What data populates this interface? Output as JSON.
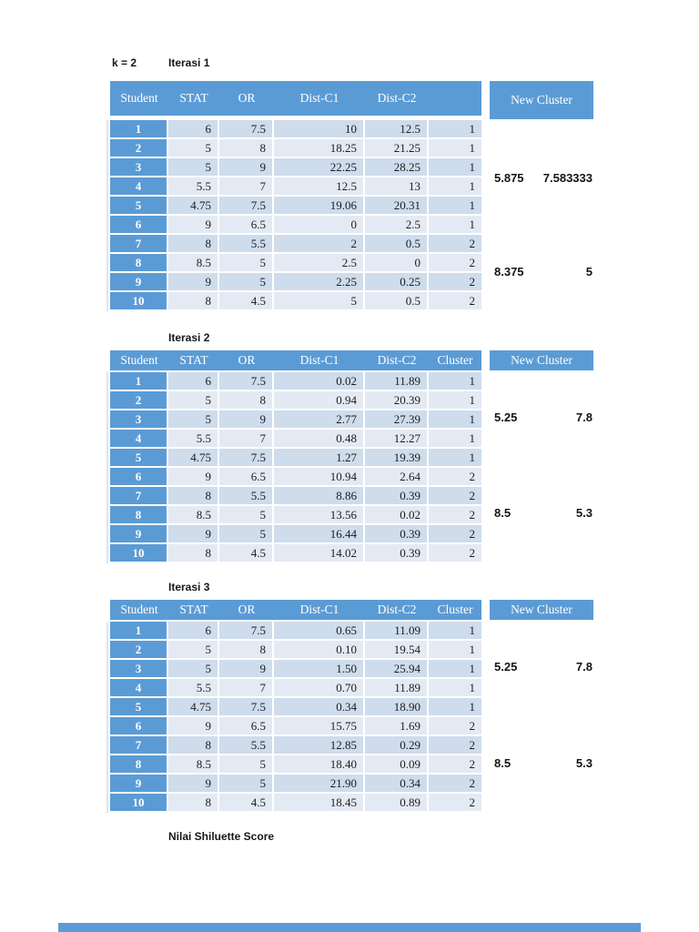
{
  "page": {
    "k_label": "k = 2",
    "footer_label": "Nilai Shiluette Score"
  },
  "colors": {
    "header_blue": "#5B9BD5",
    "band_dark": "#CEDCEC",
    "band_light": "#E4EAF4",
    "text_dark": "#1C1C1C"
  },
  "tables": [
    {
      "title": "Iterasi 1",
      "headers": [
        "Student",
        "STAT",
        "OR",
        "Dist-C1",
        "Dist-C2",
        ""
      ],
      "new_cluster_label": "New Cluster",
      "rows": [
        [
          "1",
          "6",
          "7.5",
          "10",
          "12.5",
          "1"
        ],
        [
          "2",
          "5",
          "8",
          "18.25",
          "21.25",
          "1"
        ],
        [
          "3",
          "5",
          "9",
          "22.25",
          "28.25",
          "1"
        ],
        [
          "4",
          "5.5",
          "7",
          "12.5",
          "13",
          "1"
        ],
        [
          "5",
          "4.75",
          "7.5",
          "19.06",
          "20.31",
          "1"
        ],
        [
          "6",
          "9",
          "6.5",
          "0",
          "2.5",
          "1"
        ],
        [
          "7",
          "8",
          "5.5",
          "2",
          "0.5",
          "2"
        ],
        [
          "8",
          "8.5",
          "5",
          "2.5",
          "0",
          "2"
        ],
        [
          "9",
          "9",
          "5",
          "2.25",
          "0.25",
          "2"
        ],
        [
          "10",
          "8",
          "4.5",
          "5",
          "0.5",
          "2"
        ]
      ],
      "new_cluster_values": [
        [
          "5.875",
          "7.583333"
        ],
        [
          "8.375",
          "5"
        ]
      ]
    },
    {
      "title": "Iterasi 2",
      "headers": [
        "Student",
        "STAT",
        "OR",
        "Dist-C1",
        "Dist-C2",
        "Cluster"
      ],
      "new_cluster_label": "New Cluster",
      "rows": [
        [
          "1",
          "6",
          "7.5",
          "0.02",
          "11.89",
          "1"
        ],
        [
          "2",
          "5",
          "8",
          "0.94",
          "20.39",
          "1"
        ],
        [
          "3",
          "5",
          "9",
          "2.77",
          "27.39",
          "1"
        ],
        [
          "4",
          "5.5",
          "7",
          "0.48",
          "12.27",
          "1"
        ],
        [
          "5",
          "4.75",
          "7.5",
          "1.27",
          "19.39",
          "1"
        ],
        [
          "6",
          "9",
          "6.5",
          "10.94",
          "2.64",
          "2"
        ],
        [
          "7",
          "8",
          "5.5",
          "8.86",
          "0.39",
          "2"
        ],
        [
          "8",
          "8.5",
          "5",
          "13.56",
          "0.02",
          "2"
        ],
        [
          "9",
          "9",
          "5",
          "16.44",
          "0.39",
          "2"
        ],
        [
          "10",
          "8",
          "4.5",
          "14.02",
          "0.39",
          "2"
        ]
      ],
      "new_cluster_values": [
        [
          "5.25",
          "7.8"
        ],
        [
          "8.5",
          "5.3"
        ]
      ]
    },
    {
      "title": "Iterasi 3",
      "headers": [
        "Student",
        "STAT",
        "OR",
        "Dist-C1",
        "Dist-C2",
        "Cluster"
      ],
      "new_cluster_label": "New Cluster",
      "rows": [
        [
          "1",
          "6",
          "7.5",
          "0.65",
          "11.09",
          "1"
        ],
        [
          "2",
          "5",
          "8",
          "0.10",
          "19.54",
          "1"
        ],
        [
          "3",
          "5",
          "9",
          "1.50",
          "25.94",
          "1"
        ],
        [
          "4",
          "5.5",
          "7",
          "0.70",
          "11.89",
          "1"
        ],
        [
          "5",
          "4.75",
          "7.5",
          "0.34",
          "18.90",
          "1"
        ],
        [
          "6",
          "9",
          "6.5",
          "15.75",
          "1.69",
          "2"
        ],
        [
          "7",
          "8",
          "5.5",
          "12.85",
          "0.29",
          "2"
        ],
        [
          "8",
          "8.5",
          "5",
          "18.40",
          "0.09",
          "2"
        ],
        [
          "9",
          "9",
          "5",
          "21.90",
          "0.34",
          "2"
        ],
        [
          "10",
          "8",
          "4.5",
          "18.45",
          "0.89",
          "2"
        ]
      ],
      "new_cluster_values": [
        [
          "5.25",
          "7.8"
        ],
        [
          "8.5",
          "5.3"
        ]
      ]
    }
  ]
}
